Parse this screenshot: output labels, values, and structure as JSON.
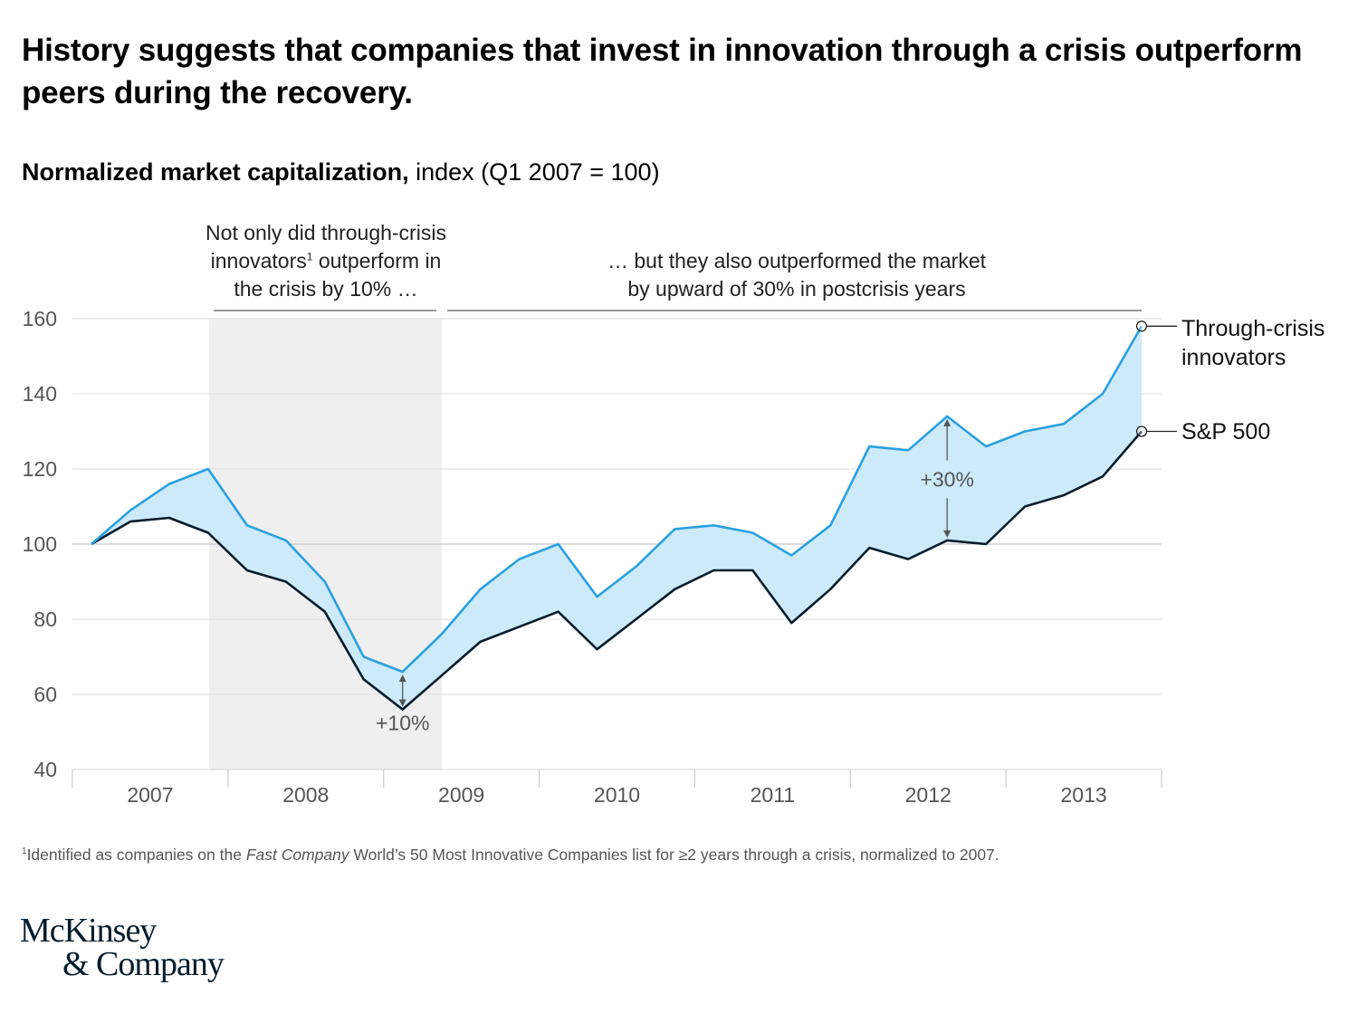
{
  "header": {
    "title": "History suggests that companies that invest in innovation through a crisis outperform peers during the recovery.",
    "subtitle_bold": "Normalized market capitalization,",
    "subtitle_rest": " index (Q1 2007 = 100)"
  },
  "annotations": {
    "left_line1": "Not only did through-crisis",
    "left_line2_a": "innovators",
    "left_line2_sup": "1",
    "left_line2_b": " outperform in",
    "left_line3": "the crisis by 10% …",
    "right_line1": "… but they also outperformed the market",
    "right_line2": "by upward of 30% in postcrisis years",
    "gap_crisis": "+10%",
    "gap_postcrisis": "+30%"
  },
  "footnote": {
    "sup": "1",
    "text_a": "Identified as companies on the ",
    "text_italic": "Fast Company",
    "text_b": " World’s 50 Most Innovative Companies list for ≥2 years through a crisis, normalized to 2007."
  },
  "logo": {
    "line1": "McKinsey",
    "line2": "& Company"
  },
  "chart_data": {
    "type": "area",
    "title": "Normalized market capitalization, index (Q1 2007 = 100)",
    "xlabel": "",
    "ylabel": "",
    "ylim": [
      40,
      160
    ],
    "yticks": [
      40,
      60,
      80,
      100,
      120,
      140,
      160
    ],
    "grid": true,
    "x_unit": "quarter",
    "x_start": "Q1 2007",
    "categories": [
      "2007",
      "2008",
      "2009",
      "2010",
      "2011",
      "2012",
      "2013"
    ],
    "shaded_period": {
      "label": "crisis",
      "from_quarter_index": 3,
      "to_quarter_index": 9
    },
    "series": [
      {
        "name": "Through-crisis innovators",
        "label_line1": "Through-crisis",
        "label_line2": "innovators",
        "color": "#2aa0e0",
        "values": [
          100,
          109,
          116,
          120,
          105,
          101,
          90,
          70,
          66,
          76,
          88,
          96,
          100,
          86,
          94,
          104,
          105,
          103,
          97,
          105,
          126,
          125,
          134,
          126,
          130,
          132,
          140,
          158
        ]
      },
      {
        "name": "S&P 500",
        "label_line1": "S&P 500",
        "color": "#051c2c",
        "values": [
          100,
          106,
          107,
          103,
          93,
          90,
          82,
          64,
          56,
          65,
          74,
          78,
          82,
          72,
          80,
          88,
          93,
          93,
          79,
          88,
          99,
          96,
          101,
          100,
          110,
          113,
          118,
          130
        ]
      }
    ],
    "fill_between_color": "#cdeafb",
    "gap_annotations": [
      {
        "label": "+10%",
        "quarter_index": 8
      },
      {
        "label": "+30%",
        "quarter_index": 22
      }
    ],
    "legend_placement": "right (end-of-line labels)"
  }
}
